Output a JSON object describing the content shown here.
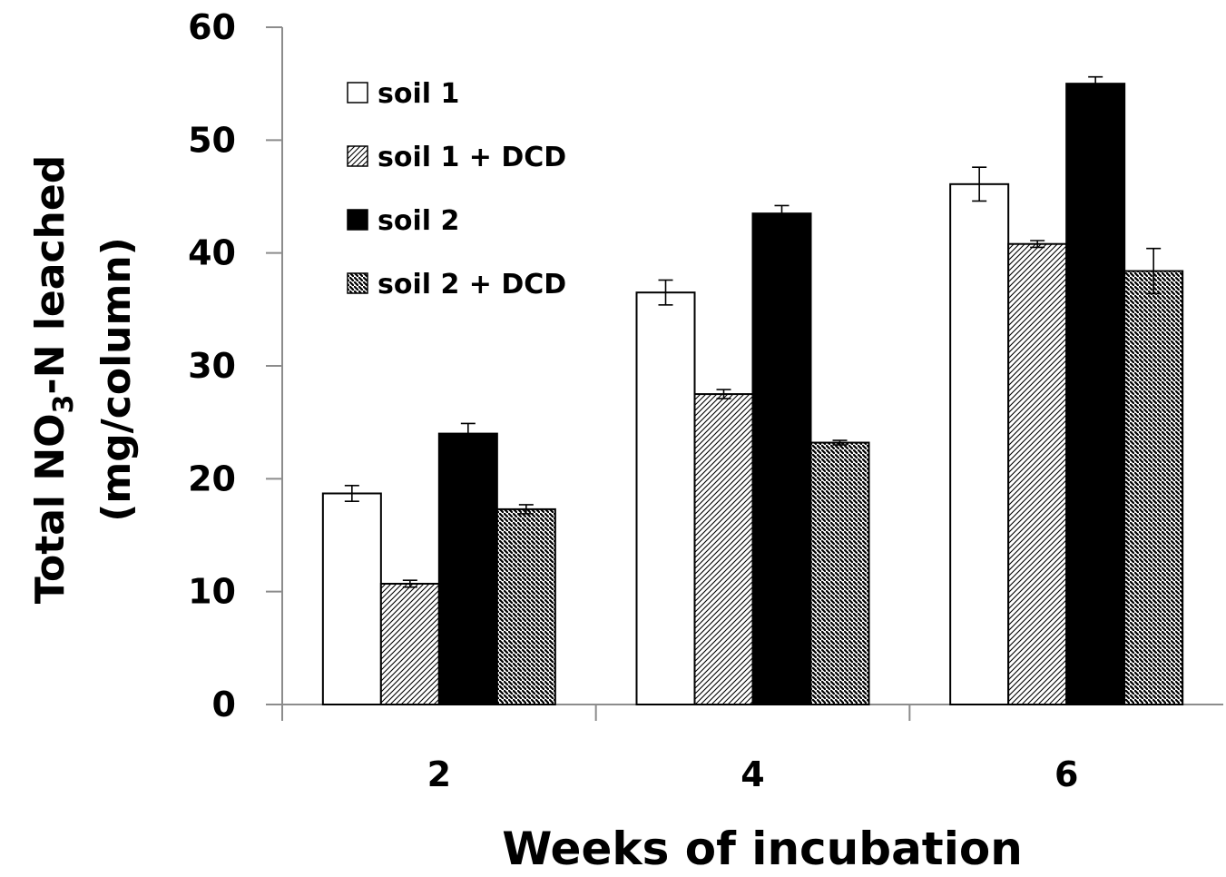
{
  "chart_data": {
    "type": "bar",
    "title": "",
    "xlabel": "Weeks of incubation",
    "ylabel": {
      "line1_prefix": "Total NO",
      "line1_subscript": "3",
      "line1_suffix": "-N leached",
      "line2": "(mg/column)"
    },
    "ylim": [
      0,
      60
    ],
    "yticks": [
      "0",
      "10",
      "20",
      "30",
      "40",
      "50",
      "60"
    ],
    "grid": false,
    "legend_position": "top-left",
    "categories": [
      "2",
      "4",
      "6"
    ],
    "series": [
      {
        "name": "soil 1",
        "pattern": "open",
        "values": [
          18.7,
          36.5,
          46.1
        ],
        "errors": [
          0.7,
          1.1,
          1.5
        ]
      },
      {
        "name": "soil 1 + DCD",
        "pattern": "hatch-light",
        "values": [
          10.7,
          27.5,
          40.8
        ],
        "errors": [
          0.3,
          0.4,
          0.3
        ]
      },
      {
        "name": "soil 2",
        "pattern": "solid",
        "values": [
          24.0,
          43.5,
          55.0
        ],
        "errors": [
          0.9,
          0.7,
          0.6
        ]
      },
      {
        "name": "soil 2 + DCD",
        "pattern": "hatch-dark",
        "values": [
          17.3,
          23.2,
          38.4
        ],
        "errors": [
          0.4,
          0.2,
          2.0
        ]
      }
    ],
    "colors": {
      "open": "#ffffff",
      "solid": "#000000",
      "outline": "#000000",
      "axis": "#8c8c8c"
    }
  }
}
